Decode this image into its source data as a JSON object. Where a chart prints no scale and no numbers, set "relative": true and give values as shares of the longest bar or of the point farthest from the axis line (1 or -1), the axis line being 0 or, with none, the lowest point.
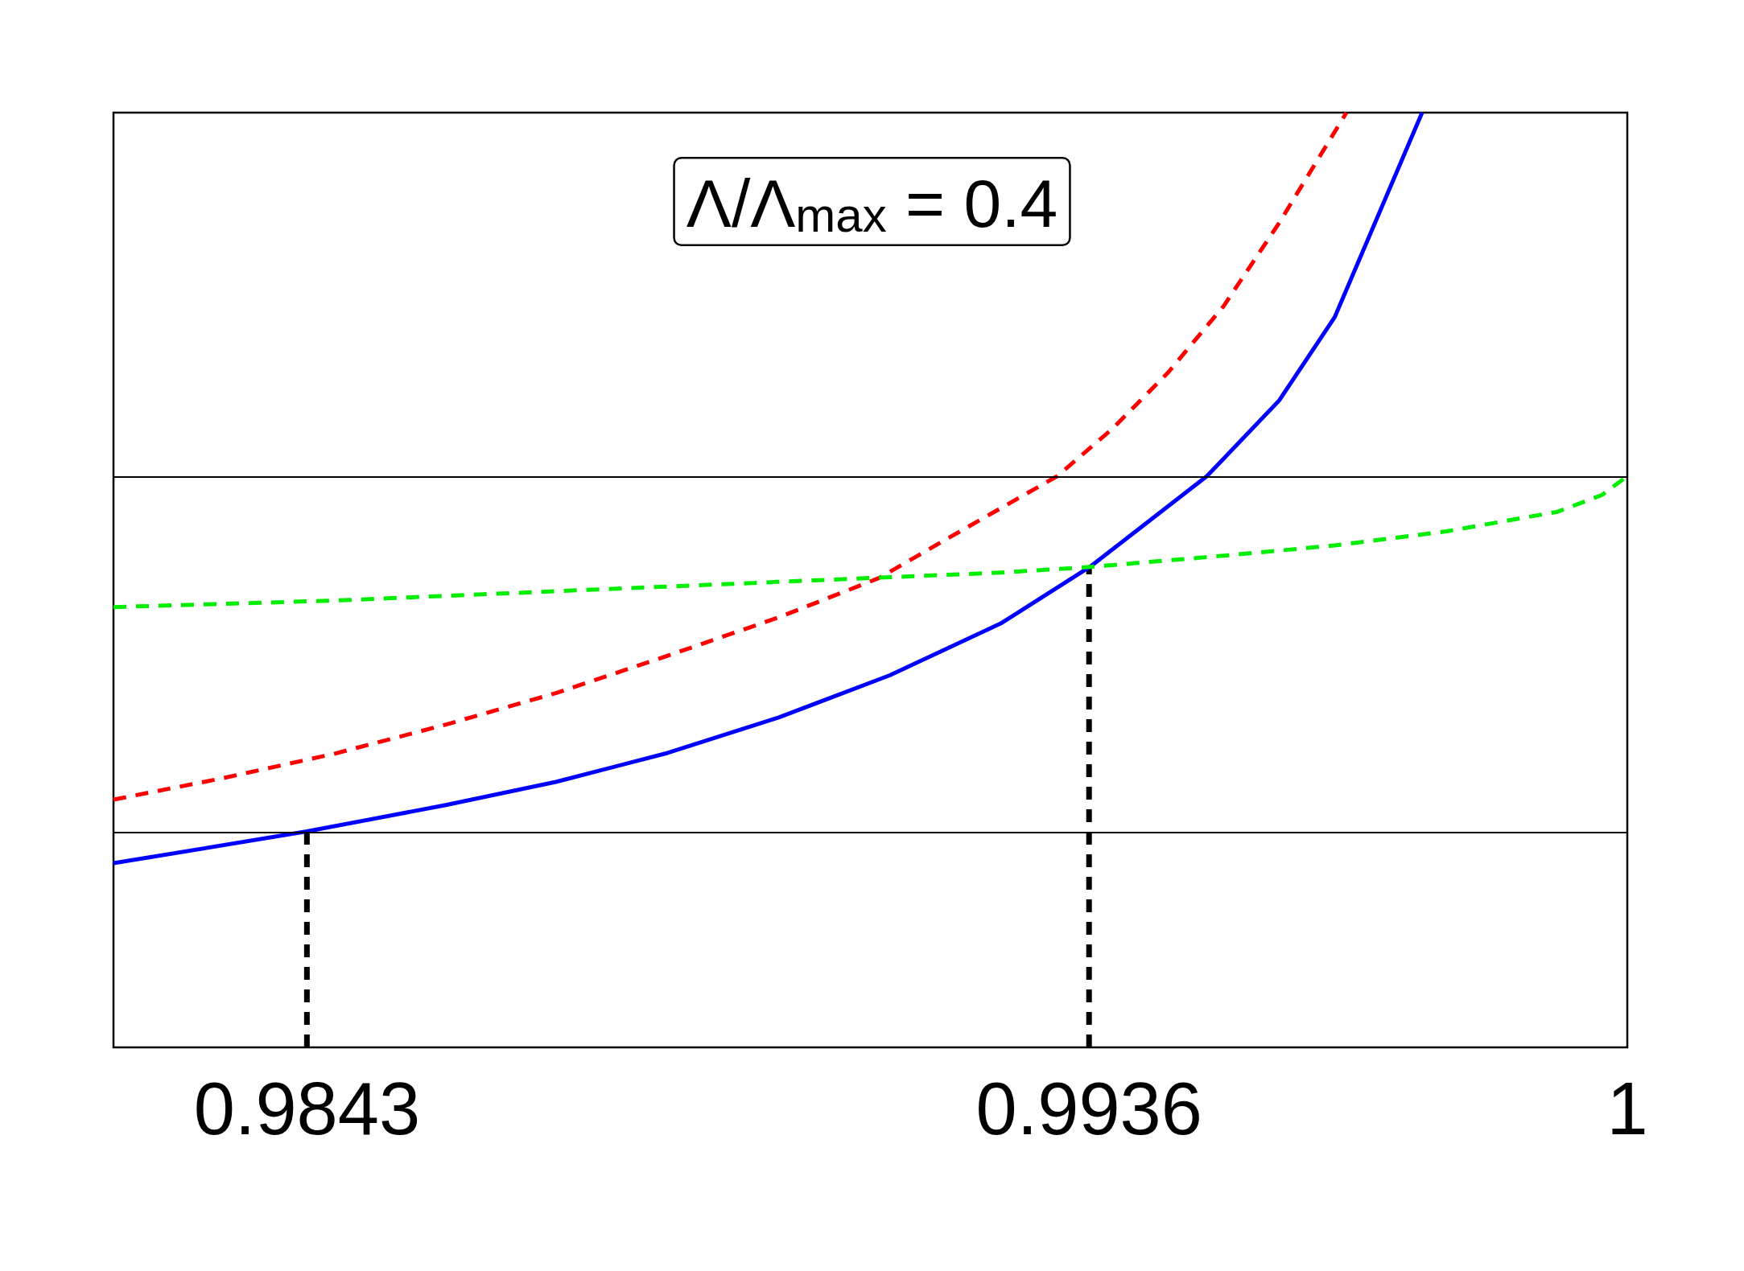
{
  "chart_data": {
    "type": "line",
    "relative": true,
    "xlim": [
      0.982,
      1
    ],
    "xticks": [
      0.9843,
      0.9936,
      1
    ],
    "annotations": [
      "Λ/Λ$_{max}$ = 0.4"
    ],
    "ref_lines": [
      {
        "axis": "y",
        "value": 0.611,
        "color": "#000000",
        "line_style": "solid"
      },
      {
        "axis": "y",
        "value": 0.231,
        "color": "#000000",
        "line_style": "solid"
      }
    ],
    "series": [
      {
        "color": "#0000ff",
        "line_style": "solid",
        "x": [
          0.982,
          0.9843,
          0.98594,
          0.98726,
          0.98859,
          0.98991,
          0.99123,
          0.99256,
          0.99361,
          0.995,
          0.99586,
          0.99652,
          0.99756
        ],
        "values": [
          0.197,
          0.231,
          0.259,
          0.284,
          0.315,
          0.353,
          0.398,
          0.454,
          0.514,
          0.611,
          0.692,
          0.781,
          1
        ]
      },
      {
        "color": "#ff0000",
        "line_style": "dashed",
        "x": [
          0.982,
          0.9833,
          0.98462,
          0.98594,
          0.98726,
          0.98859,
          0.98991,
          0.9911,
          0.99189,
          0.99322,
          0.99388,
          0.99454,
          0.9952,
          0.99586,
          0.99666
        ],
        "values": [
          0.265,
          0.288,
          0.314,
          0.345,
          0.379,
          0.419,
          0.46,
          0.502,
          0.543,
          0.611,
          0.662,
          0.722,
          0.793,
          0.882,
          1
        ]
      },
      {
        "color": "#00ee00",
        "line_style": "dashed",
        "x": [
          0.982,
          0.98462,
          0.98726,
          0.98991,
          0.99256,
          0.99361,
          0.9952,
          0.99652,
          0.99785,
          0.99917,
          0.9997,
          1
        ],
        "values": [
          0.471,
          0.478,
          0.488,
          0.498,
          0.508,
          0.514,
          0.526,
          0.537,
          0.552,
          0.573,
          0.591,
          0.611
        ]
      },
      {
        "color": "#000000",
        "line_style": "dashed",
        "x": [
          0.9843,
          0.9843
        ],
        "values": [
          0,
          0.231
        ]
      },
      {
        "color": "#000000",
        "line_style": "dashed",
        "x": [
          0.9936,
          0.9936
        ],
        "values": [
          0,
          0.514
        ]
      }
    ]
  }
}
